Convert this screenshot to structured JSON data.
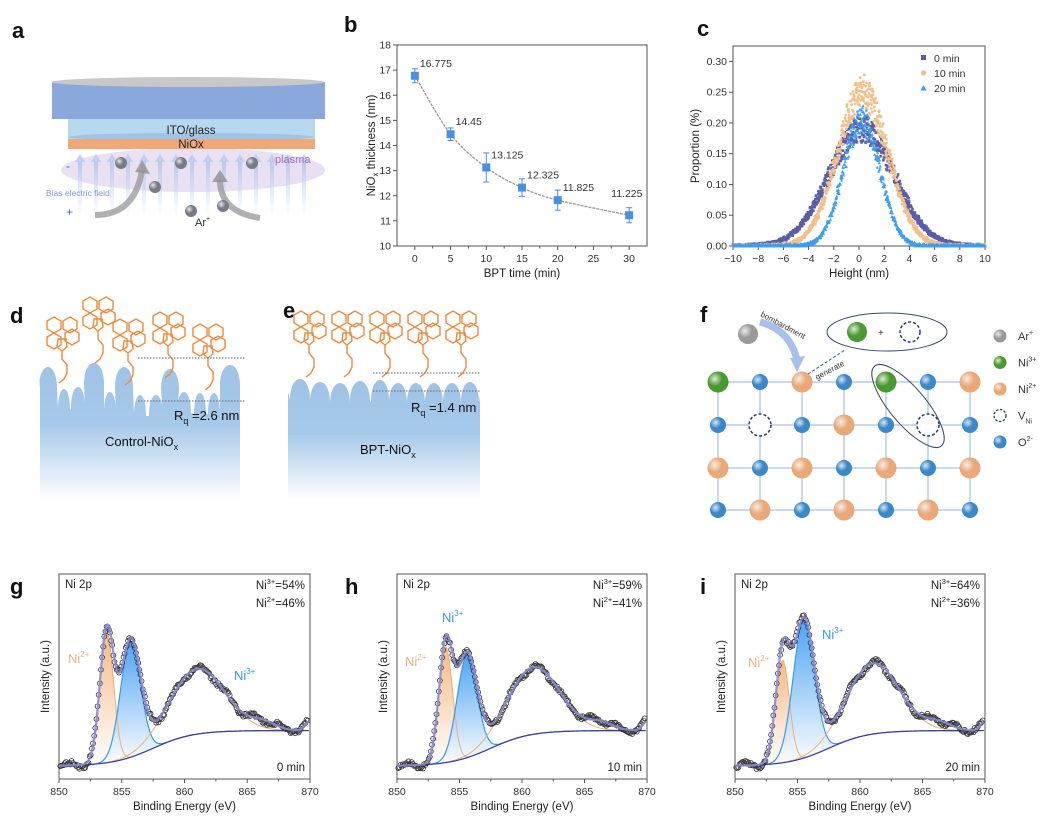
{
  "panel_labels": [
    "a",
    "b",
    "c",
    "d",
    "e",
    "f",
    "g",
    "h",
    "i"
  ],
  "panel_a": {
    "ito_label": "ITO/glass",
    "niox_label": "NiOx",
    "plasma_label": "plasma",
    "field_label": "Bias electric field",
    "minus": "-",
    "plus": "+",
    "ion_label": "Ar",
    "ion_charge": "+",
    "colors": {
      "substrate": "#8aa8dc",
      "ito": "#b8d8f0",
      "niox": "#f0a878",
      "plasma": "#e4d8ef",
      "plasma_text": "#a070c0"
    }
  },
  "panel_d": {
    "rq_sym": "R",
    "rq_sub": "q",
    "rq_value": " =2.6 nm",
    "name": "Control-NiO",
    "name_sub": "x"
  },
  "panel_e": {
    "rq_sym": "R",
    "rq_sub": "q",
    "rq_value": " =1.4 nm",
    "name": "BPT-NiO",
    "name_sub": "x"
  },
  "panel_f": {
    "bombardment": "bombardment",
    "generate": "generate",
    "plus": "+",
    "lattice": [
      [
        "Ni3+",
        "O2-",
        "Ni2+",
        "O2-",
        "Ni3+",
        "O2-",
        "Ni2+"
      ],
      [
        "O2-",
        "VNi",
        "O2-",
        "Ni2+",
        "O2-",
        "VNi",
        "O2-"
      ],
      [
        "Ni2+",
        "O2-",
        "Ni2+",
        "O2-",
        "Ni2+",
        "O2-",
        "Ni2+"
      ],
      [
        "O2-",
        "Ni2+",
        "O2-",
        "Ni2+",
        "O2-",
        "Ni2+",
        "O2-"
      ]
    ],
    "legend": [
      {
        "species": "Ar+",
        "base": "Ar",
        "sup": "+",
        "sub": "",
        "color": "#9a9a9a"
      },
      {
        "species": "Ni3+",
        "base": "Ni",
        "sup": "3+",
        "sub": "",
        "color": "#4a9a30"
      },
      {
        "species": "Ni2+",
        "base": "Ni",
        "sup": "2+",
        "sub": "",
        "color": "#e8a878"
      },
      {
        "species": "VNi",
        "base": "V",
        "sup": "",
        "sub": "Ni",
        "color": "#2a3a70"
      },
      {
        "species": "O2-",
        "base": "O",
        "sup": "2-",
        "sub": "",
        "color": "#3a88c8"
      }
    ]
  },
  "chart_data": [
    {
      "panel": "b",
      "type": "line",
      "xlabel": "BPT time (min)",
      "ylabel": {
        "main": "NiO",
        "sub": "x",
        "rest": " thickness (nm)"
      },
      "x": [
        0,
        5,
        10,
        15,
        20,
        30
      ],
      "y": [
        16.775,
        14.45,
        13.125,
        12.325,
        11.825,
        11.225
      ],
      "error": [
        0.28,
        0.25,
        0.58,
        0.35,
        0.4,
        0.3
      ],
      "data_labels": [
        "16.775",
        "14.45",
        "13.125",
        "12.325",
        "11.825",
        "11.225"
      ],
      "xlim": [
        -2.5,
        32.5
      ],
      "ylim": [
        10,
        18
      ],
      "xticks": [
        0,
        5,
        10,
        15,
        20,
        25,
        30
      ],
      "yticks": [
        10,
        11,
        12,
        13,
        14,
        15,
        16,
        17,
        18
      ],
      "color": "#4a90e2",
      "grid": false
    },
    {
      "panel": "c",
      "type": "scatter",
      "xlabel": "Height (nm)",
      "ylabel": "Proportion (%)",
      "xlim": [
        -10,
        10
      ],
      "ylim": [
        0,
        0.325
      ],
      "xticks": [
        -10,
        -8,
        -6,
        -4,
        -2,
        0,
        2,
        4,
        6,
        8,
        10
      ],
      "yticks": [
        0.0,
        0.05,
        0.1,
        0.15,
        0.2,
        0.25,
        0.3
      ],
      "legend_position": "top-right",
      "series": [
        {
          "name": "0  min",
          "marker": "square",
          "color": "#5b5ea6",
          "center": 0.2,
          "sigma": 2.6,
          "peak": 0.19
        },
        {
          "name": "10 min",
          "marker": "circle",
          "color": "#f2c08a",
          "center": 0.3,
          "sigma": 2.0,
          "peak": 0.25
        },
        {
          "name": "20 min",
          "marker": "triangle",
          "color": "#3d9ef0",
          "center": 0.2,
          "sigma": 1.45,
          "peak": 0.205
        }
      ],
      "grid": false
    },
    {
      "panel": "g",
      "type": "line",
      "xlabel": "Binding Energy (eV)",
      "ylabel": "Intensity (a.u.)",
      "xlim": [
        850,
        870
      ],
      "ylim": [
        0,
        1.1
      ],
      "xticks": [
        850,
        855,
        860,
        865,
        870
      ],
      "title": "Ni 2p",
      "time": "0 min",
      "ratio_ni3": {
        "ion": "Ni",
        "charge": "3+",
        "value": "=54%"
      },
      "ratio_ni2": {
        "ion": "Ni",
        "charge": "2+",
        "value": "=46%"
      },
      "peak_labels": [
        {
          "ion": "Ni",
          "charge": "2+",
          "color": "#f2b27a"
        },
        {
          "ion": "Ni",
          "charge": "3+",
          "color": "#3a9af0"
        }
      ],
      "components": {
        "ni2": {
          "center": 853.8,
          "sigma": 0.55,
          "height": 0.7
        },
        "ni3": {
          "center": 855.7,
          "sigma": 0.8,
          "height": 0.62
        },
        "satellite": {
          "center": 861.0,
          "sigma": 2.2,
          "height": 0.35
        }
      }
    },
    {
      "panel": "h",
      "type": "line",
      "xlabel": "Binding Energy (eV)",
      "ylabel": "Intensity (a.u.)",
      "xlim": [
        850,
        870
      ],
      "ylim": [
        0,
        1.1
      ],
      "xticks": [
        850,
        855,
        860,
        865,
        870
      ],
      "title": "Ni 2p",
      "time": "10 min",
      "ratio_ni3": {
        "ion": "Ni",
        "charge": "3+",
        "value": "=59%"
      },
      "ratio_ni2": {
        "ion": "Ni",
        "charge": "2+",
        "value": "=41%"
      },
      "peak_labels": [
        {
          "ion": "Ni",
          "charge": "2+",
          "color": "#f2b27a"
        },
        {
          "ion": "Ni",
          "charge": "3+",
          "color": "#3a9af0"
        }
      ],
      "components": {
        "ni2": {
          "center": 853.9,
          "sigma": 0.55,
          "height": 0.62
        },
        "ni3": {
          "center": 855.6,
          "sigma": 0.8,
          "height": 0.55
        },
        "satellite": {
          "center": 860.9,
          "sigma": 2.1,
          "height": 0.36
        }
      }
    },
    {
      "panel": "i",
      "type": "line",
      "xlabel": "Binding Energy (eV)",
      "ylabel": "Intensity (a.u.)",
      "xlim": [
        850,
        870
      ],
      "ylim": [
        0,
        1.1
      ],
      "xticks": [
        850,
        855,
        860,
        865,
        870
      ],
      "title": "Ni 2p",
      "time": "20 min",
      "ratio_ni3": {
        "ion": "Ni",
        "charge": "3+",
        "value": "=64%"
      },
      "ratio_ni2": {
        "ion": "Ni",
        "charge": "2+",
        "value": "=36%"
      },
      "peak_labels": [
        {
          "ion": "Ni",
          "charge": "2+",
          "color": "#f2b27a"
        },
        {
          "ion": "Ni",
          "charge": "3+",
          "color": "#3a9af0"
        }
      ],
      "components": {
        "ni2": {
          "center": 853.8,
          "sigma": 0.55,
          "height": 0.55
        },
        "ni3": {
          "center": 855.5,
          "sigma": 0.85,
          "height": 0.74
        },
        "satellite": {
          "center": 861.0,
          "sigma": 2.1,
          "height": 0.38
        }
      }
    }
  ]
}
